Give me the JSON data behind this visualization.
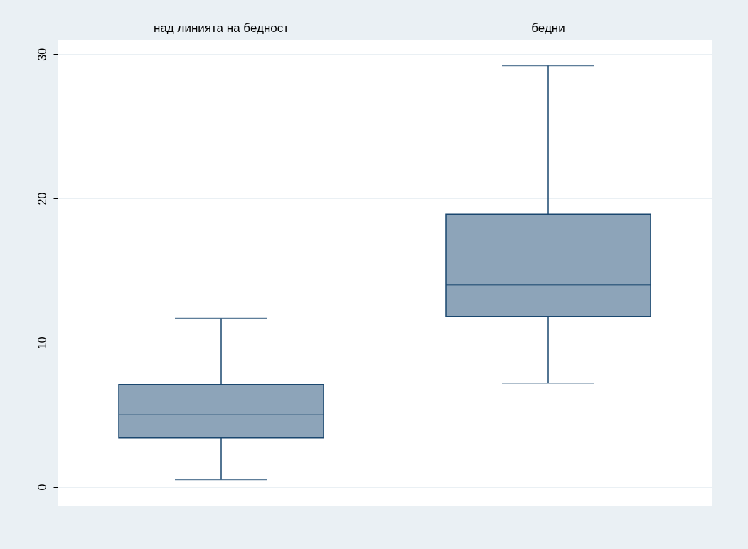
{
  "chart_data": {
    "type": "box",
    "categories": [
      "над линията на бедност",
      "бедни"
    ],
    "ylim": [
      -1.3,
      31
    ],
    "yticks": [
      0,
      10,
      20,
      30
    ],
    "grid": "y",
    "series": [
      {
        "color": "#8da4b9",
        "boxes": [
          {
            "low": 0.5,
            "q1": 3.4,
            "median": 5.0,
            "q3": 7.1,
            "high": 11.7
          },
          {
            "low": 7.2,
            "q1": 11.8,
            "median": 14.0,
            "q3": 18.9,
            "high": 29.2
          }
        ]
      }
    ]
  }
}
